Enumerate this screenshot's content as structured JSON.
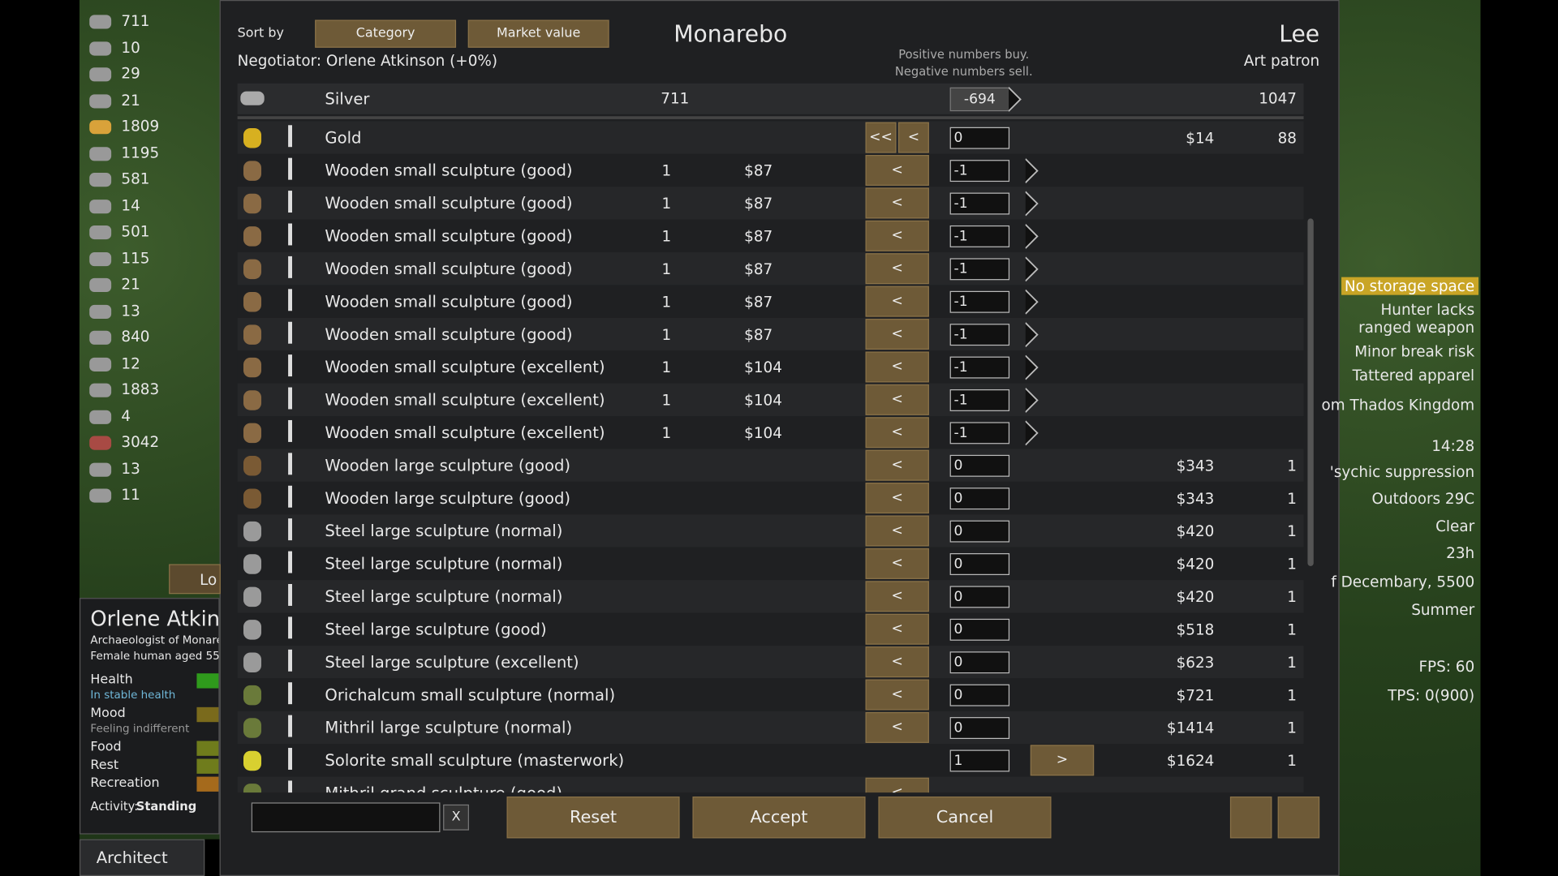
{
  "resources": [
    "711",
    "10",
    "29",
    "21",
    "1809",
    "1195",
    "581",
    "14",
    "501",
    "115",
    "21",
    "13",
    "840",
    "12",
    "1883",
    "4",
    "3042",
    "13",
    "11"
  ],
  "side_button": "Lo",
  "colonist": {
    "name": "Orlene Atkin",
    "title": "Archaeologist of Monare",
    "description": "Female human aged 55",
    "needs": [
      {
        "label": "Health",
        "status": "In stable health"
      },
      {
        "label": "Mood",
        "status": "Feeling indifferent"
      },
      {
        "label": "Food"
      },
      {
        "label": "Rest"
      },
      {
        "label": "Recreation"
      }
    ],
    "activity_label": "Activity:",
    "activity": "Standing"
  },
  "architect": "Architect",
  "alerts": [
    "No storage space",
    "Hunter lacks ranged weapon",
    "Minor break risk",
    "Tattered apparel",
    "om Thados Kingdom",
    "14:28",
    "'sychic suppression",
    "Outdoors 29C",
    "Clear",
    "23h",
    "f Decembary, 5500",
    "Summer",
    "FPS: 60",
    "TPS: 0(900)"
  ],
  "trade": {
    "sort_label": "Sort by",
    "sort_buttons": [
      "Category",
      "Market value"
    ],
    "colony_name": "Monarebo",
    "negotiator": "Negotiator: Orlene Atkinson (+0%)",
    "hint": [
      "Positive numbers buy.",
      "Negative numbers sell."
    ],
    "trader_name": "Lee",
    "trader_kind": "Art patron",
    "silver": {
      "name": "Silver",
      "colony_count": "711",
      "amount": "-694",
      "trader_count": "1047"
    },
    "rows": [
      {
        "name": "Gold",
        "left_buttons": [
          "<<",
          "<"
        ],
        "amount": "0",
        "trader_price": "$14",
        "trader_count": "88"
      },
      {
        "name": "Wooden small sculpture (good)",
        "colony_count": "1",
        "colony_price": "$87",
        "left_buttons": [
          "<"
        ],
        "amount": "-1"
      },
      {
        "name": "Wooden small sculpture (good)",
        "colony_count": "1",
        "colony_price": "$87",
        "left_buttons": [
          "<"
        ],
        "amount": "-1"
      },
      {
        "name": "Wooden small sculpture (good)",
        "colony_count": "1",
        "colony_price": "$87",
        "left_buttons": [
          "<"
        ],
        "amount": "-1"
      },
      {
        "name": "Wooden small sculpture (good)",
        "colony_count": "1",
        "colony_price": "$87",
        "left_buttons": [
          "<"
        ],
        "amount": "-1"
      },
      {
        "name": "Wooden small sculpture (good)",
        "colony_count": "1",
        "colony_price": "$87",
        "left_buttons": [
          "<"
        ],
        "amount": "-1"
      },
      {
        "name": "Wooden small sculpture (good)",
        "colony_count": "1",
        "colony_price": "$87",
        "left_buttons": [
          "<"
        ],
        "amount": "-1"
      },
      {
        "name": "Wooden small sculpture (excellent)",
        "colony_count": "1",
        "colony_price": "$104",
        "left_buttons": [
          "<"
        ],
        "amount": "-1"
      },
      {
        "name": "Wooden small sculpture (excellent)",
        "colony_count": "1",
        "colony_price": "$104",
        "left_buttons": [
          "<"
        ],
        "amount": "-1"
      },
      {
        "name": "Wooden small sculpture (excellent)",
        "colony_count": "1",
        "colony_price": "$104",
        "left_buttons": [
          "<"
        ],
        "amount": "-1"
      },
      {
        "name": "Wooden large sculpture (good)",
        "left_buttons": [
          "<"
        ],
        "amount": "0",
        "trader_price": "$343",
        "trader_count": "1"
      },
      {
        "name": "Wooden large sculpture (good)",
        "left_buttons": [
          "<"
        ],
        "amount": "0",
        "trader_price": "$343",
        "trader_count": "1"
      },
      {
        "name": "Steel large sculpture (normal)",
        "left_buttons": [
          "<"
        ],
        "amount": "0",
        "trader_price": "$420",
        "trader_count": "1"
      },
      {
        "name": "Steel large sculpture (normal)",
        "left_buttons": [
          "<"
        ],
        "amount": "0",
        "trader_price": "$420",
        "trader_count": "1"
      },
      {
        "name": "Steel large sculpture (normal)",
        "left_buttons": [
          "<"
        ],
        "amount": "0",
        "trader_price": "$420",
        "trader_count": "1"
      },
      {
        "name": "Steel large sculpture (good)",
        "left_buttons": [
          "<"
        ],
        "amount": "0",
        "trader_price": "$518",
        "trader_count": "1"
      },
      {
        "name": "Steel large sculpture (excellent)",
        "left_buttons": [
          "<"
        ],
        "amount": "0",
        "trader_price": "$623",
        "trader_count": "1"
      },
      {
        "name": "Orichalcum small sculpture (normal)",
        "left_buttons": [
          "<"
        ],
        "amount": "0",
        "trader_price": "$721",
        "trader_count": "1"
      },
      {
        "name": "Mithril large sculpture (normal)",
        "left_buttons": [
          "<"
        ],
        "amount": "0",
        "trader_price": "$1414",
        "trader_count": "1"
      },
      {
        "name": "Solorite small sculpture (masterwork)",
        "amount": "1",
        "right_buttons": [
          ">"
        ],
        "trader_price": "$1624",
        "trader_count": "1"
      },
      {
        "name": "Mithril grand sculpture (good)",
        "left_buttons": [
          "<"
        ]
      }
    ],
    "clear_button": "X",
    "actions": [
      "Reset",
      "Accept",
      "Cancel"
    ]
  }
}
